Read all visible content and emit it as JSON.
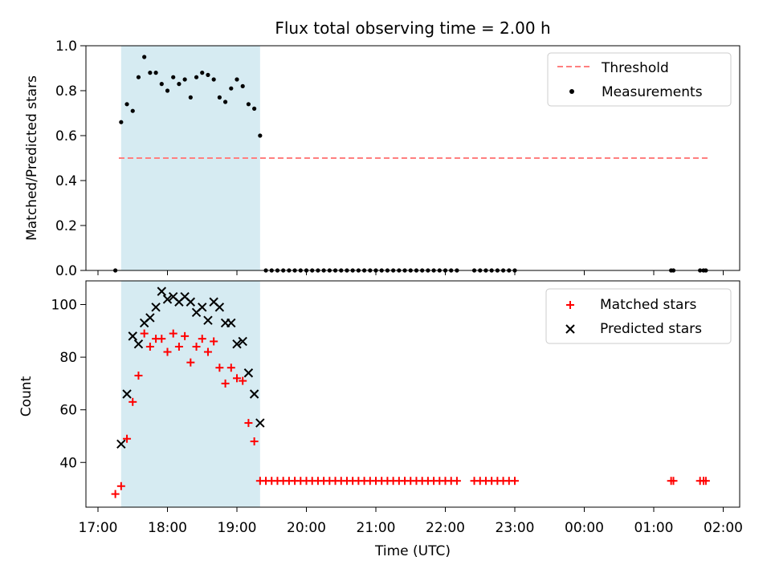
{
  "chart_data": [
    {
      "type": "scatter",
      "title": "Flux total observing time = 2.00 h",
      "xlabel": "",
      "ylabel": "Matched/Predicted stars",
      "ylim": [
        0,
        1
      ],
      "yticks": [
        "0.0",
        "0.2",
        "0.4",
        "0.6",
        "0.8",
        "1.0"
      ],
      "legend_position": "top-right",
      "highlight_span": {
        "x": [
          "17:20",
          "19:20"
        ],
        "color": "#add8e6"
      },
      "threshold": {
        "name": "Threshold",
        "value": 0.5,
        "x": [
          "17:18",
          "01:48"
        ],
        "color": "#ff7f7f"
      },
      "series": [
        {
          "name": "Measurements",
          "marker": "dot",
          "color": "#000000",
          "points": [
            [
              "17:15",
              0.0
            ],
            [
              "17:20",
              0.66
            ],
            [
              "17:25",
              0.74
            ],
            [
              "17:30",
              0.71
            ],
            [
              "17:35",
              0.86
            ],
            [
              "17:40",
              0.95
            ],
            [
              "17:45",
              0.88
            ],
            [
              "17:50",
              0.88
            ],
            [
              "17:55",
              0.83
            ],
            [
              "18:00",
              0.8
            ],
            [
              "18:05",
              0.86
            ],
            [
              "18:10",
              0.83
            ],
            [
              "18:15",
              0.85
            ],
            [
              "18:20",
              0.77
            ],
            [
              "18:25",
              0.86
            ],
            [
              "18:30",
              0.88
            ],
            [
              "18:35",
              0.87
            ],
            [
              "18:40",
              0.85
            ],
            [
              "18:45",
              0.77
            ],
            [
              "18:50",
              0.75
            ],
            [
              "18:55",
              0.81
            ],
            [
              "19:00",
              0.85
            ],
            [
              "19:05",
              0.82
            ],
            [
              "19:10",
              0.74
            ],
            [
              "19:15",
              0.72
            ],
            [
              "19:20",
              0.6
            ],
            [
              "19:25",
              0.0
            ],
            [
              "19:30",
              0.0
            ],
            [
              "19:35",
              0.0
            ],
            [
              "19:40",
              0.0
            ],
            [
              "19:45",
              0.0
            ],
            [
              "19:50",
              0.0
            ],
            [
              "19:55",
              0.0
            ],
            [
              "20:00",
              0.0
            ],
            [
              "20:05",
              0.0
            ],
            [
              "20:10",
              0.0
            ],
            [
              "20:15",
              0.0
            ],
            [
              "20:20",
              0.0
            ],
            [
              "20:25",
              0.0
            ],
            [
              "20:30",
              0.0
            ],
            [
              "20:35",
              0.0
            ],
            [
              "20:40",
              0.0
            ],
            [
              "20:45",
              0.0
            ],
            [
              "20:50",
              0.0
            ],
            [
              "20:55",
              0.0
            ],
            [
              "21:00",
              0.0
            ],
            [
              "21:05",
              0.0
            ],
            [
              "21:10",
              0.0
            ],
            [
              "21:15",
              0.0
            ],
            [
              "21:20",
              0.0
            ],
            [
              "21:25",
              0.0
            ],
            [
              "21:30",
              0.0
            ],
            [
              "21:35",
              0.0
            ],
            [
              "21:40",
              0.0
            ],
            [
              "21:45",
              0.0
            ],
            [
              "21:50",
              0.0
            ],
            [
              "21:55",
              0.0
            ],
            [
              "22:00",
              0.0
            ],
            [
              "22:05",
              0.0
            ],
            [
              "22:10",
              0.0
            ],
            [
              "22:25",
              0.0
            ],
            [
              "22:30",
              0.0
            ],
            [
              "22:35",
              0.0
            ],
            [
              "22:40",
              0.0
            ],
            [
              "22:45",
              0.0
            ],
            [
              "22:50",
              0.0
            ],
            [
              "22:55",
              0.0
            ],
            [
              "23:00",
              0.0
            ],
            [
              "01:15",
              0.0
            ],
            [
              "01:17",
              0.0
            ],
            [
              "01:40",
              0.0
            ],
            [
              "01:43",
              0.0
            ],
            [
              "01:45",
              0.0
            ]
          ]
        }
      ]
    },
    {
      "type": "scatter",
      "title": "",
      "xlabel": "Time (UTC)",
      "ylabel": "Count",
      "ylim": [
        23,
        109
      ],
      "yticks": [
        "40",
        "60",
        "80",
        "100"
      ],
      "xticks": [
        "17:00",
        "18:00",
        "19:00",
        "20:00",
        "21:00",
        "22:00",
        "23:00",
        "00:00",
        "01:00",
        "02:00"
      ],
      "legend_position": "top-right",
      "highlight_span": {
        "x": [
          "17:20",
          "19:20"
        ],
        "color": "#add8e6"
      },
      "series": [
        {
          "name": "Matched stars",
          "marker": "plus",
          "color": "#ff0000",
          "points": [
            [
              "17:15",
              28
            ],
            [
              "17:20",
              31
            ],
            [
              "17:25",
              49
            ],
            [
              "17:30",
              63
            ],
            [
              "17:35",
              73
            ],
            [
              "17:40",
              89
            ],
            [
              "17:45",
              84
            ],
            [
              "17:50",
              87
            ],
            [
              "17:55",
              87
            ],
            [
              "18:00",
              82
            ],
            [
              "18:05",
              89
            ],
            [
              "18:10",
              84
            ],
            [
              "18:15",
              88
            ],
            [
              "18:20",
              78
            ],
            [
              "18:25",
              84
            ],
            [
              "18:30",
              87
            ],
            [
              "18:35",
              82
            ],
            [
              "18:40",
              86
            ],
            [
              "18:45",
              76
            ],
            [
              "18:50",
              70
            ],
            [
              "18:55",
              76
            ],
            [
              "19:00",
              72
            ],
            [
              "19:05",
              71
            ],
            [
              "19:10",
              55
            ],
            [
              "19:15",
              48
            ],
            [
              "19:20",
              33
            ],
            [
              "19:25",
              33
            ],
            [
              "19:30",
              33
            ],
            [
              "19:35",
              33
            ],
            [
              "19:40",
              33
            ],
            [
              "19:45",
              33
            ],
            [
              "19:50",
              33
            ],
            [
              "19:55",
              33
            ],
            [
              "20:00",
              33
            ],
            [
              "20:05",
              33
            ],
            [
              "20:10",
              33
            ],
            [
              "20:15",
              33
            ],
            [
              "20:20",
              33
            ],
            [
              "20:25",
              33
            ],
            [
              "20:30",
              33
            ],
            [
              "20:35",
              33
            ],
            [
              "20:40",
              33
            ],
            [
              "20:45",
              33
            ],
            [
              "20:50",
              33
            ],
            [
              "20:55",
              33
            ],
            [
              "21:00",
              33
            ],
            [
              "21:05",
              33
            ],
            [
              "21:10",
              33
            ],
            [
              "21:15",
              33
            ],
            [
              "21:20",
              33
            ],
            [
              "21:25",
              33
            ],
            [
              "21:30",
              33
            ],
            [
              "21:35",
              33
            ],
            [
              "21:40",
              33
            ],
            [
              "21:45",
              33
            ],
            [
              "21:50",
              33
            ],
            [
              "21:55",
              33
            ],
            [
              "22:00",
              33
            ],
            [
              "22:05",
              33
            ],
            [
              "22:10",
              33
            ],
            [
              "22:25",
              33
            ],
            [
              "22:30",
              33
            ],
            [
              "22:35",
              33
            ],
            [
              "22:40",
              33
            ],
            [
              "22:45",
              33
            ],
            [
              "22:50",
              33
            ],
            [
              "22:55",
              33
            ],
            [
              "23:00",
              33
            ],
            [
              "01:15",
              33
            ],
            [
              "01:17",
              33
            ],
            [
              "01:40",
              33
            ],
            [
              "01:43",
              33
            ],
            [
              "01:45",
              33
            ]
          ]
        },
        {
          "name": "Predicted stars",
          "marker": "x",
          "color": "#000000",
          "points": [
            [
              "17:20",
              47
            ],
            [
              "17:25",
              66
            ],
            [
              "17:30",
              88
            ],
            [
              "17:35",
              85
            ],
            [
              "17:40",
              93
            ],
            [
              "17:45",
              95
            ],
            [
              "17:50",
              99
            ],
            [
              "17:55",
              105
            ],
            [
              "18:00",
              102
            ],
            [
              "18:05",
              103
            ],
            [
              "18:10",
              101
            ],
            [
              "18:15",
              103
            ],
            [
              "18:20",
              101
            ],
            [
              "18:25",
              97
            ],
            [
              "18:30",
              99
            ],
            [
              "18:35",
              94
            ],
            [
              "18:40",
              101
            ],
            [
              "18:45",
              99
            ],
            [
              "18:50",
              93
            ],
            [
              "18:55",
              93
            ],
            [
              "19:00",
              85
            ],
            [
              "19:05",
              86
            ],
            [
              "19:10",
              74
            ],
            [
              "19:15",
              66
            ],
            [
              "19:20",
              55
            ]
          ]
        }
      ]
    }
  ]
}
